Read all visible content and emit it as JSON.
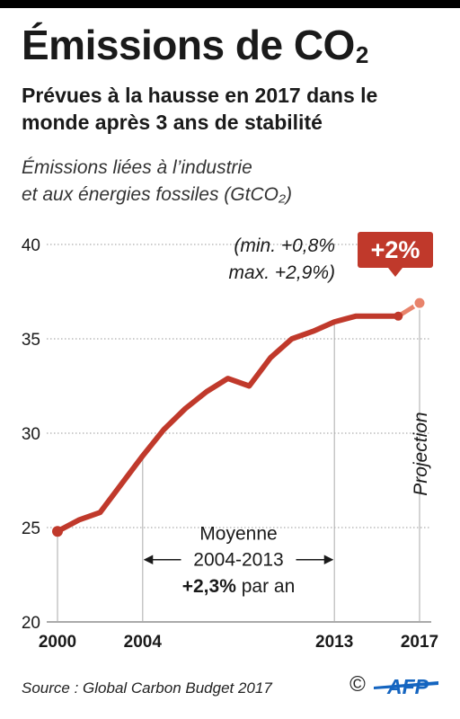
{
  "header": {
    "title_main": "Émissions de CO",
    "title_sub": "2",
    "subtitle": "Prévues à la hausse en 2017 dans le monde après 3 ans de stabilité",
    "description_line1": "Émissions liées à l’industrie",
    "description_line2": "et aux énergies fossiles (GtCO₂)"
  },
  "chart_data": {
    "type": "line",
    "x": [
      2000,
      2001,
      2002,
      2003,
      2004,
      2005,
      2006,
      2007,
      2008,
      2009,
      2010,
      2011,
      2012,
      2013,
      2014,
      2015,
      2016,
      2017
    ],
    "series": [
      {
        "values": [
          24.8,
          25.4,
          25.8,
          27.3,
          28.8,
          30.2,
          31.3,
          32.2,
          32.9,
          32.5,
          34.0,
          35.0,
          35.4,
          35.9,
          36.2,
          36.2,
          36.2,
          null
        ],
        "projection": false
      },
      {
        "values": [
          null,
          null,
          null,
          null,
          null,
          null,
          null,
          null,
          null,
          null,
          null,
          null,
          null,
          null,
          null,
          null,
          36.2,
          36.9
        ],
        "projection": true
      }
    ],
    "ylim": [
      20,
      40
    ],
    "xlim": [
      2000,
      2017
    ],
    "y_ticks": [
      "20",
      "25",
      "30",
      "35",
      "40"
    ],
    "x_ticks": [
      {
        "value": 2000,
        "label": "2000"
      },
      {
        "value": 2004,
        "label": "2004"
      },
      {
        "value": 2013,
        "label": "2013"
      },
      {
        "value": 2017,
        "label": "2017"
      }
    ],
    "grid": true,
    "colors": {
      "line": "#c0392b",
      "projection": "#e8836b",
      "badge": "#c0392b",
      "grid": "#999999"
    },
    "annotations": {
      "badge": "+2%",
      "range_line1": "(min. +0,8%",
      "range_line2": "max. +2,9%)",
      "projection_label": "Projection",
      "average_line1": "Moyenne",
      "average_line2": "2004-2013",
      "average_value": "+2,3%",
      "average_suffix": " par an",
      "average_period": [
        2004,
        2013
      ]
    }
  },
  "footer": {
    "source": "Source : Global Carbon Budget 2017",
    "copyright": "©",
    "logo_text": "AFP"
  }
}
